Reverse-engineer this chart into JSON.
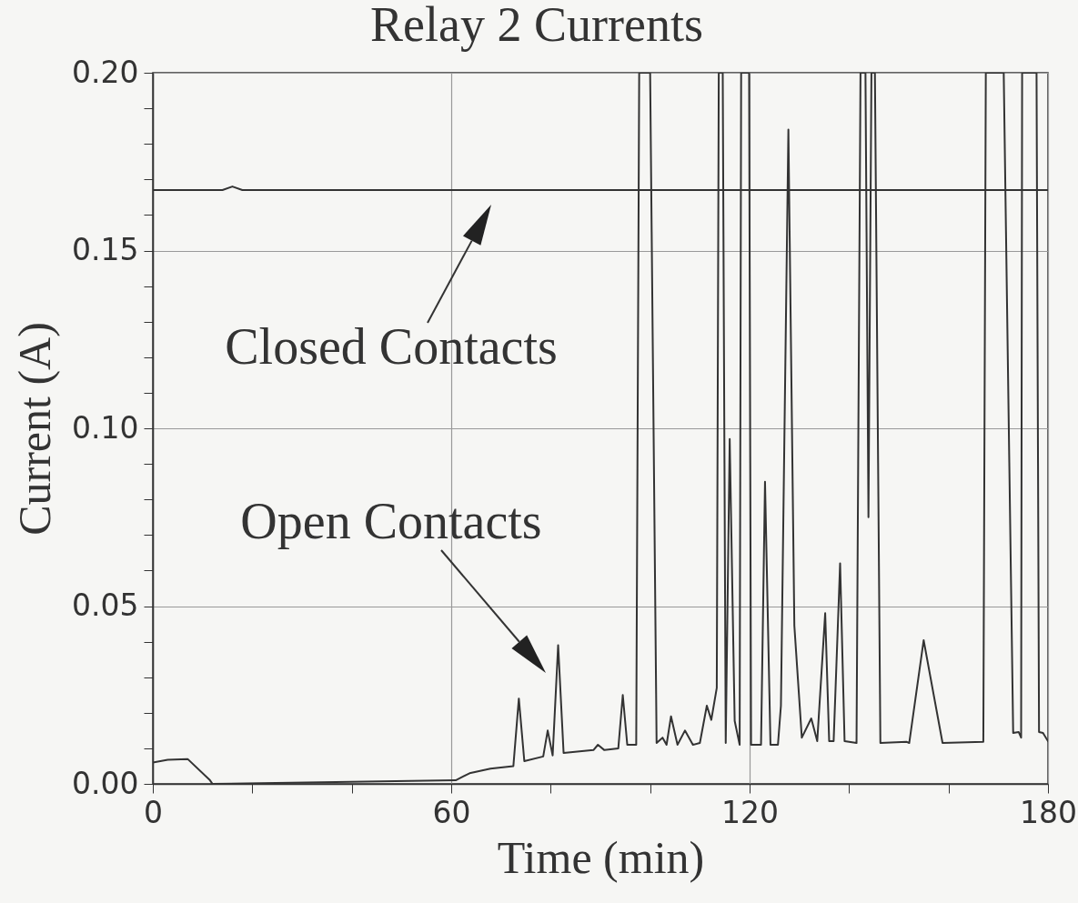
{
  "chart_data": {
    "type": "line",
    "title": "Relay 2 Currents",
    "xlabel": "Time (min)",
    "ylabel": "Current (A)",
    "xlim": [
      0,
      180
    ],
    "ylim": [
      0,
      0.2
    ],
    "xticks": [
      0,
      {
        "value": 20,
        "label": null
      },
      {
        "value": 40,
        "label": null
      },
      60,
      {
        "value": 80,
        "label": null
      },
      {
        "value": 100,
        "label": null
      },
      120,
      {
        "value": 140,
        "label": null
      },
      {
        "value": 160,
        "label": null
      },
      180
    ],
    "yticks": [
      {
        "value": 0,
        "label": "0.00"
      },
      {
        "value": 0.01,
        "label": null
      },
      {
        "value": 0.02,
        "label": null
      },
      {
        "value": 0.03,
        "label": null
      },
      {
        "value": 0.04,
        "label": null
      },
      0.05,
      {
        "value": 0.06,
        "label": null
      },
      {
        "value": 0.07,
        "label": null
      },
      {
        "value": 0.08,
        "label": null
      },
      {
        "value": 0.09,
        "label": null
      },
      {
        "value": 0.1,
        "label": "0.10"
      },
      {
        "value": 0.11,
        "label": null
      },
      {
        "value": 0.12,
        "label": null
      },
      {
        "value": 0.13,
        "label": null
      },
      {
        "value": 0.14,
        "label": null
      },
      0.15,
      {
        "value": 0.16,
        "label": null
      },
      {
        "value": 0.17,
        "label": null
      },
      {
        "value": 0.18,
        "label": null
      },
      {
        "value": 0.19,
        "label": null
      },
      {
        "value": 0.2,
        "label": "0.20"
      }
    ],
    "grid": true,
    "marker": "none",
    "line_style": "solid",
    "series": [
      {
        "color": "#333333",
        "x": [
          0,
          14,
          16,
          18,
          40,
          60,
          90,
          120,
          150,
          180
        ],
        "values": [
          0.167,
          0.167,
          0.168,
          0.167,
          0.167,
          0.167,
          0.167,
          0.167,
          0.167,
          0.167
        ]
      },
      {
        "color": "#333333",
        "x": [
          0,
          3,
          7,
          11.5,
          12,
          60.9,
          63.7,
          67.9,
          72.5,
          73.6,
          74.7,
          78.5,
          79.4,
          80.4,
          81.5,
          82.6,
          88.6,
          89.5,
          90.8,
          93.6,
          94.5,
          95.4,
          97.2,
          97.8,
          100,
          101.3,
          102.5,
          103.3,
          104.2,
          105.5,
          107,
          108.6,
          110,
          111.4,
          112.3,
          113.4,
          113.8,
          114.6,
          115.2,
          116,
          117,
          118,
          118.3,
          119.9,
          120.3,
          122.3,
          123.1,
          124.2,
          125.7,
          126.3,
          127.8,
          129,
          130.5,
          132.4,
          133.6,
          135.2,
          136,
          136.9,
          138.2,
          139.1,
          141.5,
          142.3,
          143.3,
          143.9,
          144.5,
          145.2,
          146.3,
          151.6,
          152.1,
          155,
          158.8,
          167,
          167.5,
          171.1,
          173,
          174.1,
          174.6,
          174.8,
          177.7,
          178.2,
          179,
          180
        ],
        "values": [
          0.006,
          0.0068,
          0.007,
          0.001,
          0,
          0.001,
          0.003,
          0.0043,
          0.005,
          0.024,
          0.0064,
          0.0077,
          0.015,
          0.008,
          0.039,
          0.0087,
          0.0095,
          0.011,
          0.0095,
          0.01,
          0.025,
          0.011,
          0.011,
          0.2,
          0.2,
          0.0115,
          0.013,
          0.011,
          0.019,
          0.011,
          0.015,
          0.011,
          0.0115,
          0.022,
          0.018,
          0.027,
          0.2,
          0.2,
          0.0115,
          0.097,
          0.0177,
          0.011,
          0.2,
          0.2,
          0.011,
          0.011,
          0.085,
          0.011,
          0.011,
          0.022,
          0.184,
          0.0445,
          0.013,
          0.0184,
          0.012,
          0.048,
          0.012,
          0.012,
          0.062,
          0.012,
          0.0115,
          0.2,
          0.2,
          0.075,
          0.2,
          0.2,
          0.0115,
          0.0118,
          0.0115,
          0.0404,
          0.0115,
          0.0118,
          0.2,
          0.2,
          0.0143,
          0.0146,
          0.013,
          0.2,
          0.2,
          0.0146,
          0.0143,
          0.012
        ]
      }
    ],
    "annotations": [
      "Closed Contacts",
      "Open Contacts"
    ]
  }
}
